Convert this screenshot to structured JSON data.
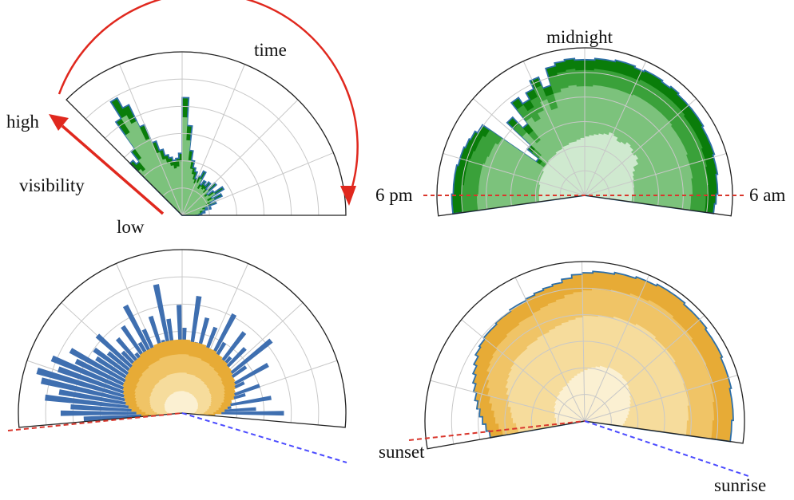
{
  "annotations": {
    "time": "time",
    "high": "high",
    "visibility": "visibility",
    "low": "low",
    "midnight": "midnight",
    "six_pm": "6 pm",
    "six_am": "6 am",
    "sunset": "sunset",
    "sunrise": "sunrise"
  },
  "colors": {
    "green_dark": "#0a7d0a",
    "green_mid": "#3aa13a",
    "green_light": "#7cc27c",
    "green_pale": "#cfe9cf",
    "yellow_dark": "#e7ab36",
    "yellow_mid": "#f0c466",
    "yellow_light": "#f6dc9c",
    "yellow_pale": "#fbf0d2",
    "blue": "#3f6fb0",
    "outline_blue": "#2e6fa8",
    "red": "#e0281e",
    "red_dashed": "#d9362c",
    "blue_dashed": "#4b4bff"
  },
  "chart_data": [
    {
      "type": "area",
      "panel": "top-left",
      "angle_range_deg": [
        0,
        135
      ],
      "rmax": 1,
      "grid": true,
      "series": [
        {
          "name": "",
          "values": [
            0.1,
            0.12,
            0.14,
            0.13,
            0.18,
            0.15,
            0.22,
            0.19,
            0.27,
            0.21,
            0.3,
            0.24,
            0.2,
            0.28,
            0.22,
            0.26,
            0.23,
            0.25,
            0.22,
            0.3,
            0.26,
            0.24,
            0.28,
            0.3,
            0.34,
            0.4,
            0.55,
            0.72,
            0.38,
            0.35,
            0.34,
            0.36,
            0.38,
            0.42,
            0.48,
            0.6,
            0.75,
            0.82,
            0.7,
            0.5,
            0.42,
            0.45
          ]
        },
        {
          "name": "",
          "values": [
            0.08,
            0.1,
            0.11,
            0.11,
            0.14,
            0.13,
            0.17,
            0.16,
            0.22,
            0.18,
            0.24,
            0.2,
            0.18,
            0.22,
            0.19,
            0.21,
            0.2,
            0.21,
            0.19,
            0.25,
            0.22,
            0.21,
            0.23,
            0.26,
            0.29,
            0.34,
            0.46,
            0.6,
            0.33,
            0.3,
            0.29,
            0.31,
            0.33,
            0.36,
            0.41,
            0.51,
            0.64,
            0.7,
            0.6,
            0.43,
            0.36,
            0.38
          ]
        }
      ]
    },
    {
      "type": "area",
      "panel": "top-right",
      "angle_range_deg": [
        -8,
        188
      ],
      "rmax": 1,
      "grid": true,
      "series": [
        {
          "name": "",
          "values": [
            0.88,
            0.89,
            0.9,
            0.9,
            0.91,
            0.91,
            0.92,
            0.92,
            0.92,
            0.93,
            0.93,
            0.93,
            0.93,
            0.94,
            0.93,
            0.94,
            0.94,
            0.93,
            0.94,
            0.94,
            0.93,
            0.93,
            0.92,
            0.92,
            0.93,
            0.92,
            0.9,
            0.78,
            0.86,
            0.8,
            0.75,
            0.8,
            0.62,
            0.72,
            0.5,
            0.4,
            0.84,
            0.86,
            0.87,
            0.88,
            0.88,
            0.89,
            0.89,
            0.89,
            0.9,
            0.9
          ]
        },
        {
          "name": "",
          "values": [
            0.82,
            0.82,
            0.83,
            0.84,
            0.84,
            0.85,
            0.85,
            0.86,
            0.86,
            0.86,
            0.86,
            0.87,
            0.87,
            0.87,
            0.87,
            0.87,
            0.87,
            0.86,
            0.86,
            0.86,
            0.86,
            0.86,
            0.85,
            0.85,
            0.86,
            0.85,
            0.83,
            0.72,
            0.8,
            0.74,
            0.69,
            0.74,
            0.56,
            0.66,
            0.46,
            0.37,
            0.78,
            0.8,
            0.8,
            0.81,
            0.82,
            0.82,
            0.82,
            0.83,
            0.83,
            0.83
          ]
        },
        {
          "name": "",
          "values": [
            0.72,
            0.72,
            0.73,
            0.73,
            0.74,
            0.74,
            0.74,
            0.75,
            0.75,
            0.75,
            0.75,
            0.76,
            0.76,
            0.76,
            0.76,
            0.76,
            0.76,
            0.75,
            0.75,
            0.75,
            0.75,
            0.75,
            0.74,
            0.74,
            0.75,
            0.74,
            0.72,
            0.62,
            0.7,
            0.64,
            0.6,
            0.64,
            0.48,
            0.58,
            0.4,
            0.32,
            0.68,
            0.7,
            0.7,
            0.71,
            0.72,
            0.72,
            0.72,
            0.72,
            0.73,
            0.73
          ]
        },
        {
          "name": "",
          "values": [
            0.32,
            0.32,
            0.33,
            0.33,
            0.34,
            0.34,
            0.35,
            0.36,
            0.38,
            0.42,
            0.44,
            0.43,
            0.45,
            0.46,
            0.44,
            0.43,
            0.45,
            0.46,
            0.44,
            0.43,
            0.42,
            0.41,
            0.4,
            0.39,
            0.38,
            0.37,
            0.37,
            0.36,
            0.36,
            0.35,
            0.35,
            0.34,
            0.34,
            0.34,
            0.33,
            0.33,
            0.33,
            0.32,
            0.32,
            0.32,
            0.32,
            0.31,
            0.31,
            0.31,
            0.31,
            0.31
          ]
        }
      ]
    },
    {
      "type": "bar",
      "panel": "bottom-left",
      "angle_range_deg": [
        -5,
        185
      ],
      "rmax": 1,
      "grid": true,
      "series": [
        {
          "name": "",
          "values": [
            0.2,
            0.62,
            0.45,
            0.3,
            0.55,
            0.28,
            0.4,
            0.5,
            0.26,
            0.42,
            0.6,
            0.32,
            0.48,
            0.7,
            0.38,
            0.55,
            0.45,
            0.62,
            0.3,
            0.5,
            0.68,
            0.4,
            0.56,
            0.35,
            0.6,
            0.44,
            0.72,
            0.38,
            0.52,
            0.66,
            0.42,
            0.58,
            0.8,
            0.46,
            0.62,
            0.4,
            0.56,
            0.74,
            0.5,
            0.64,
            0.46,
            0.6,
            0.52,
            0.7,
            0.58,
            0.66,
            0.62,
            0.78,
            0.72,
            0.86,
            0.8,
            0.92,
            0.88,
            0.76,
            0.84,
            0.68,
            0.74,
            0.6
          ]
        },
        {
          "name": "",
          "values": [
            0.2,
            0.24,
            0.26,
            0.28,
            0.3,
            0.31,
            0.33,
            0.34,
            0.35,
            0.36,
            0.37,
            0.38,
            0.38,
            0.39,
            0.4,
            0.4,
            0.41,
            0.41,
            0.42,
            0.42,
            0.43,
            0.43,
            0.43,
            0.44,
            0.44,
            0.44,
            0.44,
            0.45,
            0.45,
            0.45,
            0.45,
            0.45,
            0.45,
            0.45,
            0.45,
            0.45,
            0.44,
            0.44,
            0.44,
            0.44,
            0.43,
            0.43,
            0.43,
            0.42,
            0.42,
            0.41,
            0.41,
            0.4,
            0.4,
            0.39,
            0.38,
            0.37,
            0.36,
            0.35,
            0.33,
            0.31,
            0.28,
            0.25
          ]
        }
      ]
    },
    {
      "type": "area",
      "panel": "bottom-right",
      "angle_range_deg": [
        -8,
        190
      ],
      "rmax": 1,
      "grid": true,
      "series": [
        {
          "name": "",
          "values": [
            0.92,
            0.92,
            0.93,
            0.93,
            0.93,
            0.94,
            0.94,
            0.94,
            0.95,
            0.95,
            0.95,
            0.96,
            0.96,
            0.96,
            0.97,
            0.97,
            0.97,
            0.96,
            0.96,
            0.95,
            0.95,
            0.94,
            0.94,
            0.93,
            0.92,
            0.9,
            0.88,
            0.87,
            0.86,
            0.85,
            0.84,
            0.84,
            0.83,
            0.83,
            0.82,
            0.82,
            0.81,
            0.8,
            0.78,
            0.76,
            0.74,
            0.72,
            0.7,
            0.68,
            0.66,
            0.64,
            0.62,
            0.6
          ]
        },
        {
          "name": "",
          "values": [
            0.8,
            0.8,
            0.81,
            0.81,
            0.82,
            0.82,
            0.83,
            0.83,
            0.84,
            0.84,
            0.84,
            0.85,
            0.85,
            0.85,
            0.86,
            0.86,
            0.86,
            0.85,
            0.85,
            0.84,
            0.84,
            0.83,
            0.83,
            0.82,
            0.81,
            0.8,
            0.78,
            0.77,
            0.76,
            0.75,
            0.74,
            0.74,
            0.73,
            0.73,
            0.72,
            0.72,
            0.71,
            0.7,
            0.69,
            0.67,
            0.65,
            0.63,
            0.61,
            0.59,
            0.57,
            0.56,
            0.54,
            0.52
          ]
        },
        {
          "name": "",
          "values": [
            0.64,
            0.64,
            0.65,
            0.65,
            0.66,
            0.66,
            0.66,
            0.67,
            0.67,
            0.67,
            0.68,
            0.68,
            0.68,
            0.68,
            0.69,
            0.69,
            0.69,
            0.68,
            0.68,
            0.68,
            0.67,
            0.67,
            0.66,
            0.66,
            0.65,
            0.64,
            0.63,
            0.62,
            0.61,
            0.6,
            0.6,
            0.59,
            0.59,
            0.58,
            0.58,
            0.58,
            0.57,
            0.56,
            0.55,
            0.54,
            0.52,
            0.5,
            0.49,
            0.47,
            0.46,
            0.45,
            0.43,
            0.42
          ]
        },
        {
          "name": "",
          "values": [
            0.24,
            0.25,
            0.26,
            0.27,
            0.28,
            0.29,
            0.3,
            0.31,
            0.32,
            0.33,
            0.34,
            0.35,
            0.36,
            0.36,
            0.37,
            0.37,
            0.37,
            0.37,
            0.36,
            0.36,
            0.35,
            0.34,
            0.33,
            0.32,
            0.31,
            0.3,
            0.29,
            0.28,
            0.27,
            0.26,
            0.25,
            0.25,
            0.24,
            0.24,
            0.23,
            0.23,
            0.22,
            0.22,
            0.21,
            0.21,
            0.2,
            0.2,
            0.19,
            0.19,
            0.18,
            0.18,
            0.18,
            0.17
          ]
        }
      ]
    }
  ]
}
